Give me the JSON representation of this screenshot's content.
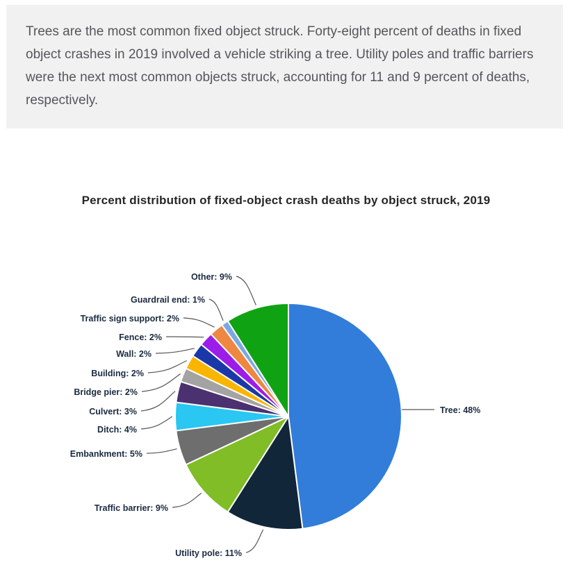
{
  "intro": {
    "text": "Trees are the most common fixed object struck. Forty-eight percent of deaths in fixed object crashes in 2019 involved a vehicle striking a tree. Utility poles and traffic barriers were the next most common objects struck, accounting for 11 and 9 percent of deaths, respectively."
  },
  "chart_data": {
    "type": "pie",
    "title": "Percent distribution of fixed-object crash deaths by object struck, 2019",
    "unit": "percent",
    "start_angle_deg": 0,
    "direction": "clockwise",
    "label_format": "{label}: {value}%",
    "legend_position": "callout-labels",
    "slices": [
      {
        "label": "Tree",
        "value": 48,
        "color": "#317dd9"
      },
      {
        "label": "Utility pole",
        "value": 11,
        "color": "#112639"
      },
      {
        "label": "Traffic barrier",
        "value": 9,
        "color": "#80bd26"
      },
      {
        "label": "Embankment",
        "value": 5,
        "color": "#6e6e6e"
      },
      {
        "label": "Ditch",
        "value": 4,
        "color": "#29c7f2"
      },
      {
        "label": "Culvert",
        "value": 3,
        "color": "#4b316f"
      },
      {
        "label": "Bridge pier",
        "value": 2,
        "color": "#a3a3a3"
      },
      {
        "label": "Building",
        "value": 2,
        "color": "#f9b500"
      },
      {
        "label": "Wall",
        "value": 2,
        "color": "#1b38a8"
      },
      {
        "label": "Fence",
        "value": 2,
        "color": "#9c1de8"
      },
      {
        "label": "Traffic sign support",
        "value": 2,
        "color": "#ee8742"
      },
      {
        "label": "Guardrail end",
        "value": 1,
        "color": "#7da7e2"
      },
      {
        "label": "Other",
        "value": 9,
        "color": "#0fa313"
      }
    ]
  },
  "colors": {
    "intro_bg": "#f1f1f2",
    "intro_text": "#54565b",
    "title_text": "#262626",
    "slice_label_text": "#1b2a40",
    "leader_line": "#555555",
    "slice_border": "#ffffff"
  }
}
